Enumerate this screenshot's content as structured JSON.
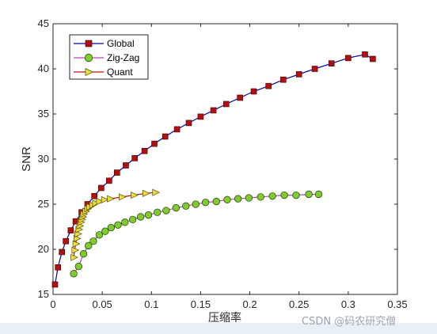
{
  "chart_data": {
    "type": "line",
    "xlabel": "压缩率",
    "ylabel": "SNR",
    "xlim": [
      0,
      0.35
    ],
    "ylim": [
      15,
      45
    ],
    "xticks": [
      0,
      0.05,
      0.1,
      0.15,
      0.2,
      0.25,
      0.3,
      0.35
    ],
    "xtick_labels": [
      "0",
      "0.05",
      "0.1",
      "0.15",
      "0.2",
      "0.25",
      "0.3",
      "0.35"
    ],
    "yticks": [
      15,
      20,
      25,
      30,
      35,
      40,
      45
    ],
    "ytick_labels": [
      "15",
      "20",
      "25",
      "30",
      "35",
      "40",
      "45"
    ],
    "grid": false,
    "legend_position": "top-left",
    "series": [
      {
        "name": "Global",
        "line_color": "#0000b0",
        "marker": "square",
        "marker_fill": "#b01010",
        "x": [
          0.002,
          0.005,
          0.009,
          0.013,
          0.018,
          0.023,
          0.029,
          0.035,
          0.042,
          0.049,
          0.057,
          0.065,
          0.074,
          0.083,
          0.093,
          0.103,
          0.114,
          0.126,
          0.138,
          0.15,
          0.163,
          0.176,
          0.19,
          0.204,
          0.219,
          0.234,
          0.25,
          0.266,
          0.283,
          0.3,
          0.317,
          0.325
        ],
        "y": [
          16.1,
          18.0,
          19.7,
          20.9,
          22.1,
          23.1,
          24.1,
          25.0,
          25.9,
          26.8,
          27.6,
          28.5,
          29.3,
          30.1,
          30.9,
          31.7,
          32.5,
          33.3,
          34.0,
          34.7,
          35.4,
          36.1,
          36.8,
          37.5,
          38.1,
          38.8,
          39.4,
          40.0,
          40.6,
          41.2,
          41.6,
          41.1
        ],
        "note_indices": "plotted values estimated from markers"
      },
      {
        "name": "Zig-Zag",
        "line_color": "#c040c0",
        "marker": "circle",
        "marker_fill": "#80cc30",
        "x": [
          0.021,
          0.026,
          0.031,
          0.036,
          0.041,
          0.047,
          0.053,
          0.059,
          0.066,
          0.073,
          0.081,
          0.089,
          0.097,
          0.106,
          0.115,
          0.125,
          0.135,
          0.145,
          0.155,
          0.166,
          0.177,
          0.188,
          0.199,
          0.211,
          0.223,
          0.235,
          0.247,
          0.26,
          0.27
        ],
        "y": [
          17.3,
          18.1,
          19.5,
          20.4,
          20.9,
          21.6,
          22.0,
          22.4,
          22.7,
          23.0,
          23.3,
          23.6,
          23.8,
          24.1,
          24.3,
          24.6,
          24.8,
          25.0,
          25.2,
          25.3,
          25.5,
          25.6,
          25.7,
          25.8,
          25.9,
          26.0,
          26.0,
          26.1,
          26.1
        ]
      },
      {
        "name": "Quant",
        "line_color": "#c01010",
        "marker": "triangle-right",
        "marker_fill": "#e8e040",
        "x": [
          0.021,
          0.022,
          0.023,
          0.024,
          0.025,
          0.026,
          0.027,
          0.028,
          0.029,
          0.03,
          0.031,
          0.033,
          0.035,
          0.037,
          0.04,
          0.043,
          0.047,
          0.052,
          0.058,
          0.07,
          0.082,
          0.094,
          0.104
        ],
        "y": [
          19.1,
          19.9,
          20.6,
          21.2,
          21.7,
          22.2,
          22.6,
          23.0,
          23.3,
          23.6,
          23.9,
          24.2,
          24.5,
          24.7,
          24.9,
          25.1,
          25.3,
          25.5,
          25.6,
          25.8,
          26.0,
          26.2,
          26.3
        ]
      }
    ]
  },
  "watermark": "CSDN @码农研究僧"
}
